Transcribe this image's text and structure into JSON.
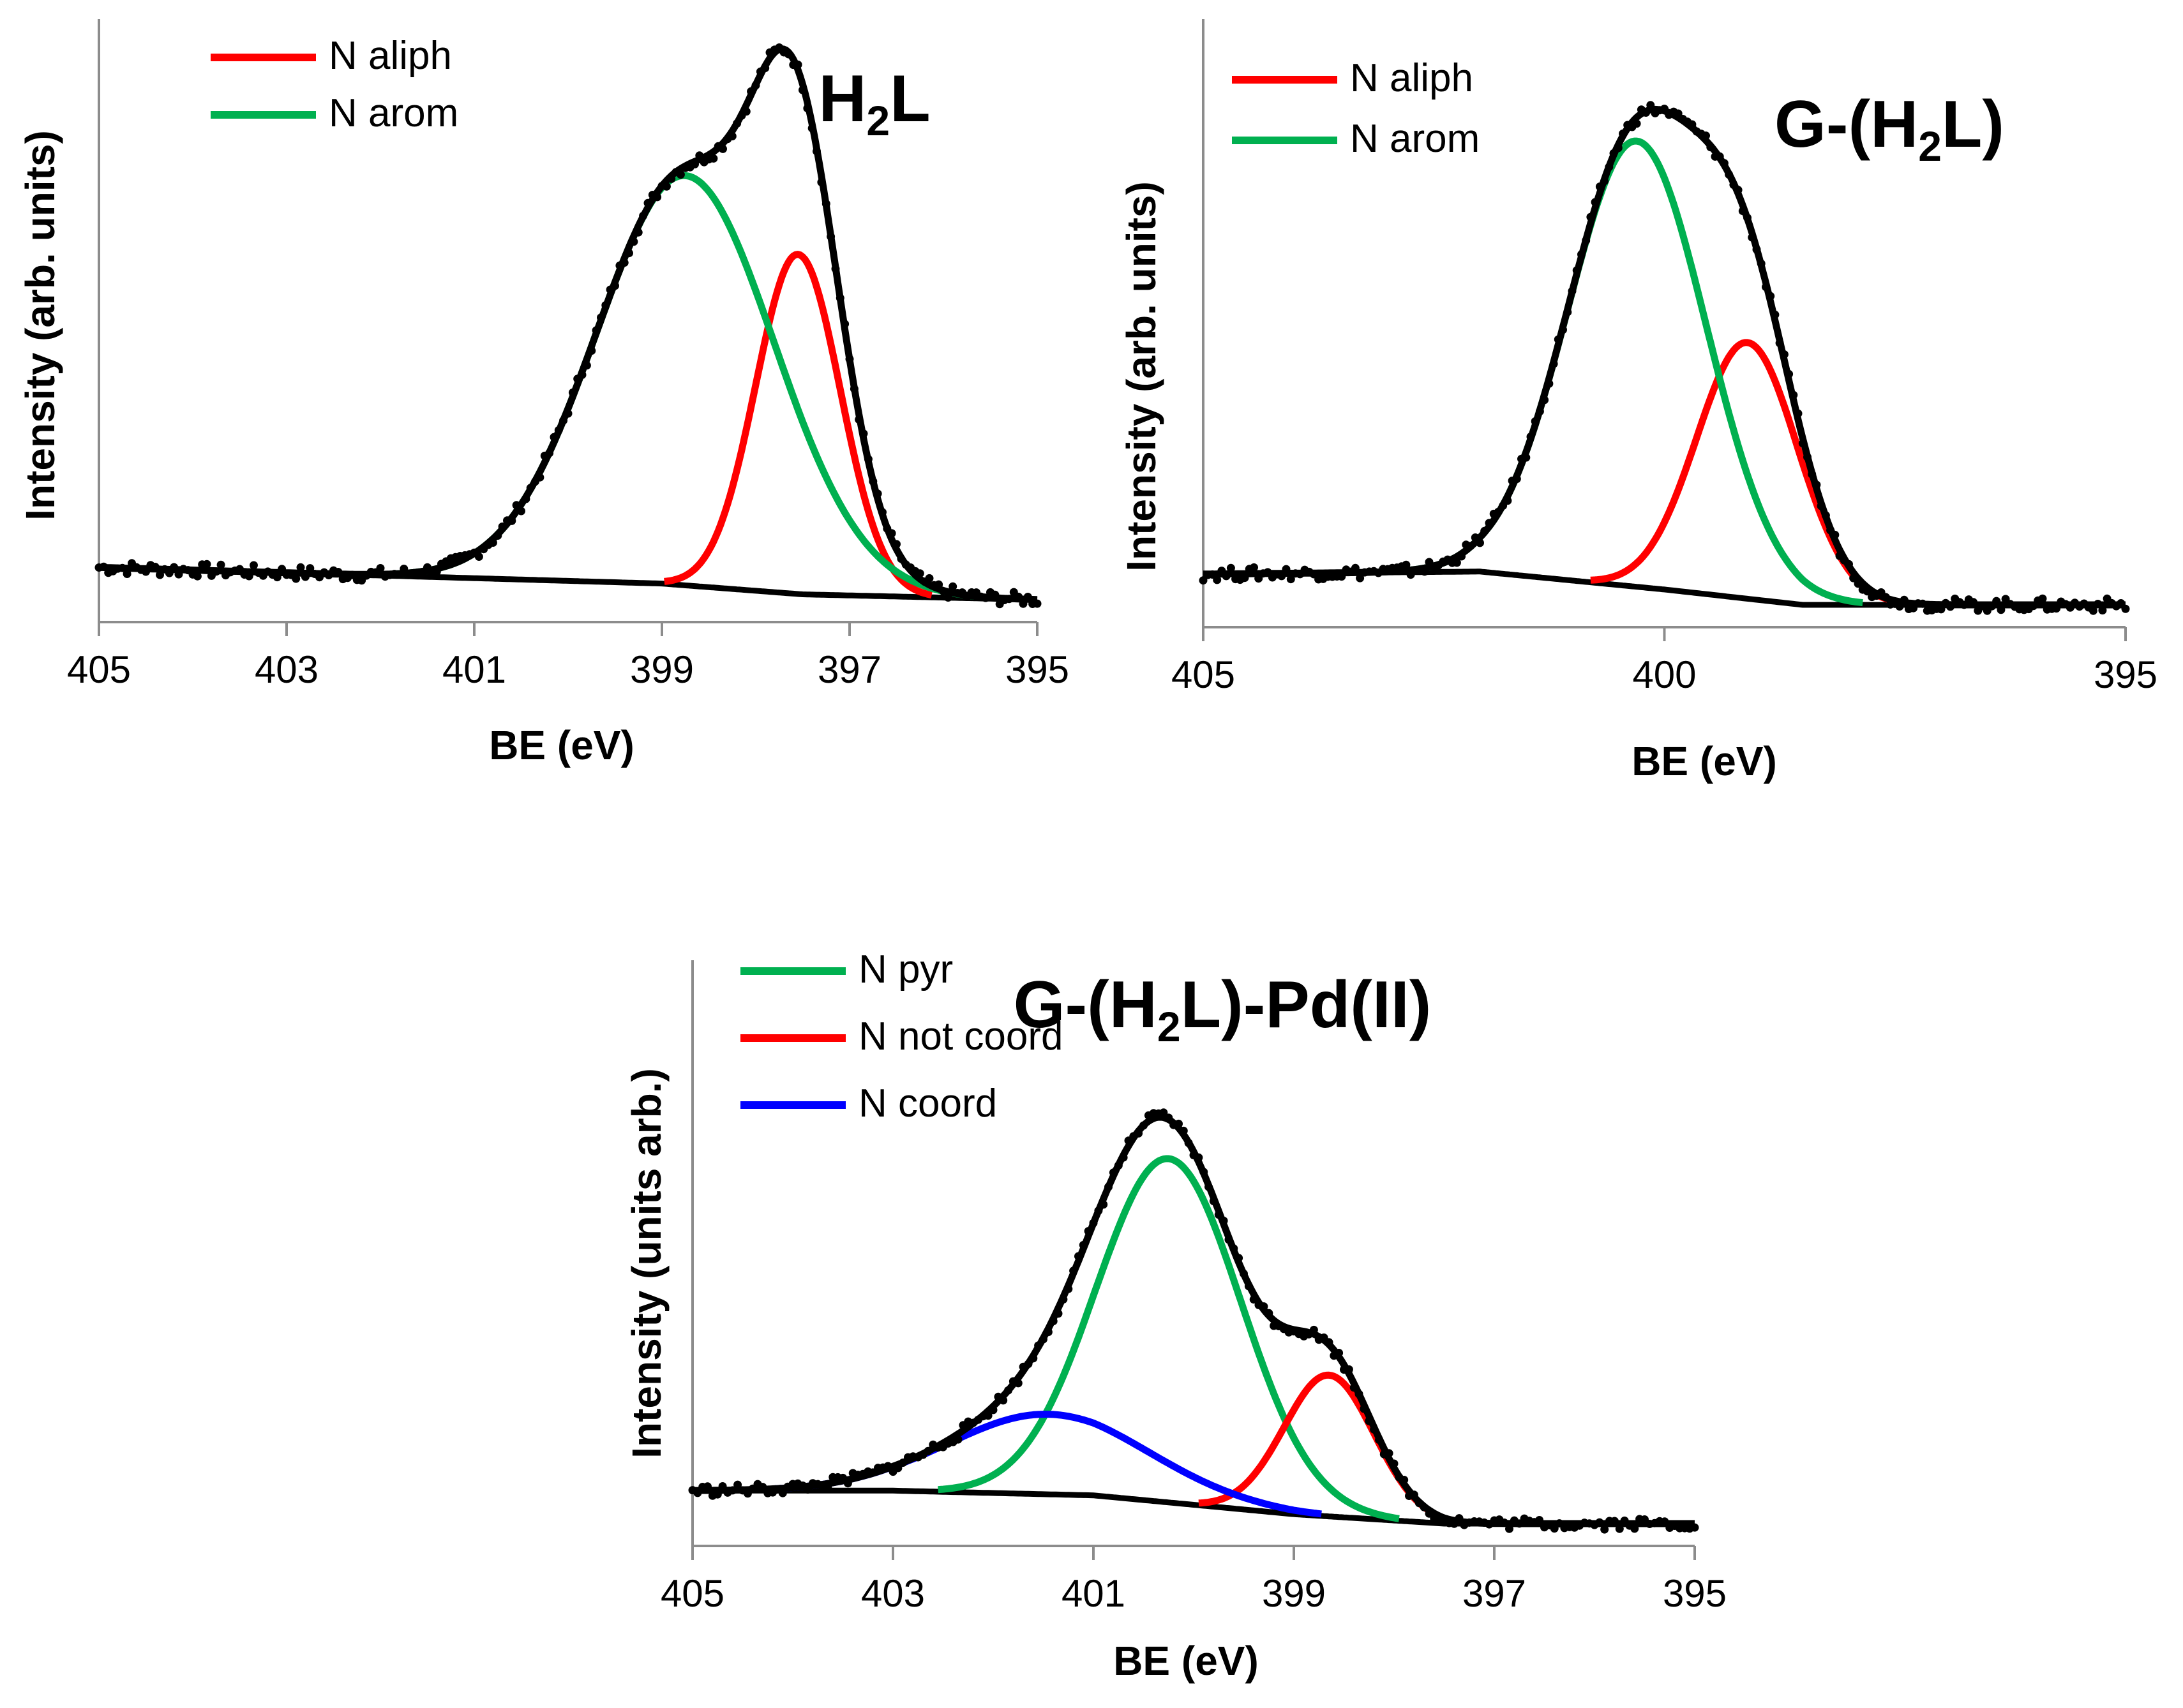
{
  "chart_data": [
    {
      "type": "line",
      "title": {
        "pre": "H",
        "sub": "2",
        "post": "L"
      },
      "xlabel": "BE (eV)",
      "ylabel": "Intensity (arb. units)",
      "xlim": [
        405,
        395
      ],
      "ylim": [
        0,
        1.0
      ],
      "xticks": [
        405,
        403,
        401,
        399,
        397,
        395
      ],
      "legend_position": "top-left",
      "baseline": {
        "x": [
          405,
          401,
          399,
          397.5,
          395
        ],
        "y": [
          0.06,
          0.04,
          0.03,
          0.01,
          0.0
        ]
      },
      "components": [
        {
          "name": "N aliph",
          "color": "#ff0000",
          "center": 397.55,
          "amp": 0.63,
          "sigma": 0.45
        },
        {
          "name": "N arom",
          "color": "#00b050",
          "center": 398.75,
          "amp": 0.76,
          "sigma": 0.95
        }
      ],
      "envelope_color": "#000000",
      "data_points": "measured spectrum (black dots) overlaying envelope"
    },
    {
      "type": "line",
      "title": {
        "pre": "G-(H",
        "sub": "2",
        "post": "L)"
      },
      "xlabel": "BE (eV)",
      "ylabel": "Intensity (arb. units)",
      "xlim": [
        405,
        395
      ],
      "ylim": [
        0,
        1.0
      ],
      "xticks": [
        405,
        400,
        395
      ],
      "legend_position": "top-left",
      "baseline": {
        "x": [
          405,
          402,
          400,
          398.5,
          395
        ],
        "y": [
          0.06,
          0.065,
          0.03,
          0.0,
          0.0
        ]
      },
      "components": [
        {
          "name": "N aliph",
          "color": "#ff0000",
          "center": 399.1,
          "amp": 0.5,
          "sigma": 0.55
        },
        {
          "name": "N arom",
          "color": "#00b050",
          "center": 400.3,
          "amp": 0.87,
          "sigma": 0.75
        }
      ],
      "envelope_color": "#000000",
      "data_points": "measured spectrum (black dots) overlaying envelope"
    },
    {
      "type": "line",
      "title": {
        "pre": "G-(H",
        "sub": "2",
        "post": "L)-Pd(II)"
      },
      "xlabel": "BE (eV)",
      "ylabel": "Intensity (units arb.)",
      "xlim": [
        405,
        395
      ],
      "ylim": [
        0,
        1.0
      ],
      "xticks": [
        405,
        403,
        401,
        399,
        397,
        395
      ],
      "legend_position": "top-left",
      "baseline": {
        "x": [
          405,
          403,
          401,
          399,
          397.5,
          395
        ],
        "y": [
          0.07,
          0.07,
          0.06,
          0.02,
          0.0,
          0.0
        ]
      },
      "components": [
        {
          "name": "N pyr",
          "color": "#00b050",
          "center": 400.25,
          "amp": 0.73,
          "sigma": 0.72
        },
        {
          "name": "N not coord",
          "color": "#ff0000",
          "center": 398.65,
          "amp": 0.3,
          "sigma": 0.45
        },
        {
          "name": "N coord",
          "color": "#0000ff",
          "center": 401.45,
          "amp": 0.17,
          "sigma": 1.0
        }
      ],
      "envelope_color": "#000000",
      "data_points": "measured spectrum (black dots) overlaying envelope"
    }
  ]
}
